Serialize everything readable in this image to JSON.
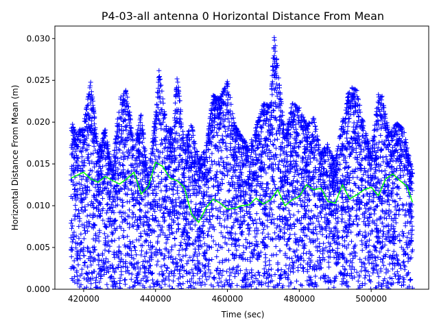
{
  "chart_data": {
    "type": "scatter",
    "title": "P4-03-all antenna 0 Horizontal Distance From Mean",
    "xlabel": "Time (sec)",
    "ylabel": "Horizontal Distance From Mean (m)",
    "xlim": [
      412000,
      516000
    ],
    "ylim": [
      0,
      0.0315
    ],
    "xticks": [
      420000,
      440000,
      460000,
      480000,
      500000
    ],
    "xtick_labels": [
      "420000",
      "440000",
      "460000",
      "480000",
      "500000"
    ],
    "yticks": [
      0,
      0.005,
      0.01,
      0.015,
      0.02,
      0.025,
      0.03
    ],
    "ytick_labels": [
      "0.000",
      "0.005",
      "0.010",
      "0.015",
      "0.020",
      "0.025",
      "0.030"
    ],
    "grid": false,
    "series": [
      {
        "marker": "plus",
        "color": "#0000ff",
        "x_range": [
          416500,
          511500
        ],
        "y_range": [
          0,
          0.0302
        ],
        "envelope": {
          "x": [
            416500,
            418000,
            420000,
            422000,
            424000,
            426000,
            428000,
            430000,
            432000,
            434000,
            436000,
            438000,
            440000,
            441000,
            443000,
            445000,
            446000,
            448000,
            450000,
            452000,
            454000,
            456000,
            458000,
            460000,
            462000,
            464000,
            466000,
            468000,
            470000,
            472000,
            473000,
            474000,
            476000,
            478000,
            480000,
            482000,
            484000,
            486000,
            488000,
            490000,
            492000,
            494000,
            496000,
            498000,
            500000,
            502000,
            503000,
            505000,
            507000,
            509000,
            511500
          ],
          "y": [
            0.0202,
            0.0185,
            0.0198,
            0.025,
            0.0165,
            0.0193,
            0.0142,
            0.023,
            0.024,
            0.017,
            0.021,
            0.0135,
            0.021,
            0.0264,
            0.0195,
            0.019,
            0.0258,
            0.0175,
            0.0198,
            0.0155,
            0.0168,
            0.0232,
            0.0228,
            0.025,
            0.0196,
            0.0183,
            0.017,
            0.0195,
            0.0222,
            0.022,
            0.0302,
            0.0265,
            0.018,
            0.0223,
            0.0218,
            0.0196,
            0.0206,
            0.0163,
            0.0175,
            0.0153,
            0.02,
            0.0243,
            0.0238,
            0.0195,
            0.0163,
            0.0233,
            0.0232,
            0.0185,
            0.0199,
            0.0192,
            0.014
          ]
        }
      },
      {
        "line": true,
        "color": "#00ff00",
        "x": [
          416500,
          418000,
          420000,
          422000,
          424000,
          426000,
          428000,
          430000,
          432000,
          434000,
          436000,
          438000,
          440000,
          442000,
          444000,
          446000,
          448000,
          450000,
          452000,
          454000,
          456000,
          458000,
          460000,
          462000,
          464000,
          466000,
          468000,
          470000,
          472000,
          474000,
          476000,
          478000,
          480000,
          482000,
          484000,
          486000,
          488000,
          490000,
          492000,
          494000,
          496000,
          498000,
          500000,
          502000,
          504000,
          506000,
          508000,
          510000,
          511500
        ],
        "y": [
          0.0133,
          0.0136,
          0.014,
          0.0132,
          0.0128,
          0.0135,
          0.013,
          0.0126,
          0.0132,
          0.014,
          0.0114,
          0.0123,
          0.0152,
          0.0147,
          0.0133,
          0.013,
          0.0122,
          0.009,
          0.008,
          0.0097,
          0.0108,
          0.0103,
          0.0096,
          0.0097,
          0.01,
          0.0101,
          0.0109,
          0.0102,
          0.0107,
          0.0119,
          0.01,
          0.0107,
          0.0111,
          0.0125,
          0.0119,
          0.0121,
          0.0105,
          0.0103,
          0.0125,
          0.0108,
          0.0113,
          0.0119,
          0.0122,
          0.0112,
          0.0132,
          0.0138,
          0.013,
          0.0123,
          0.0104
        ]
      }
    ]
  }
}
